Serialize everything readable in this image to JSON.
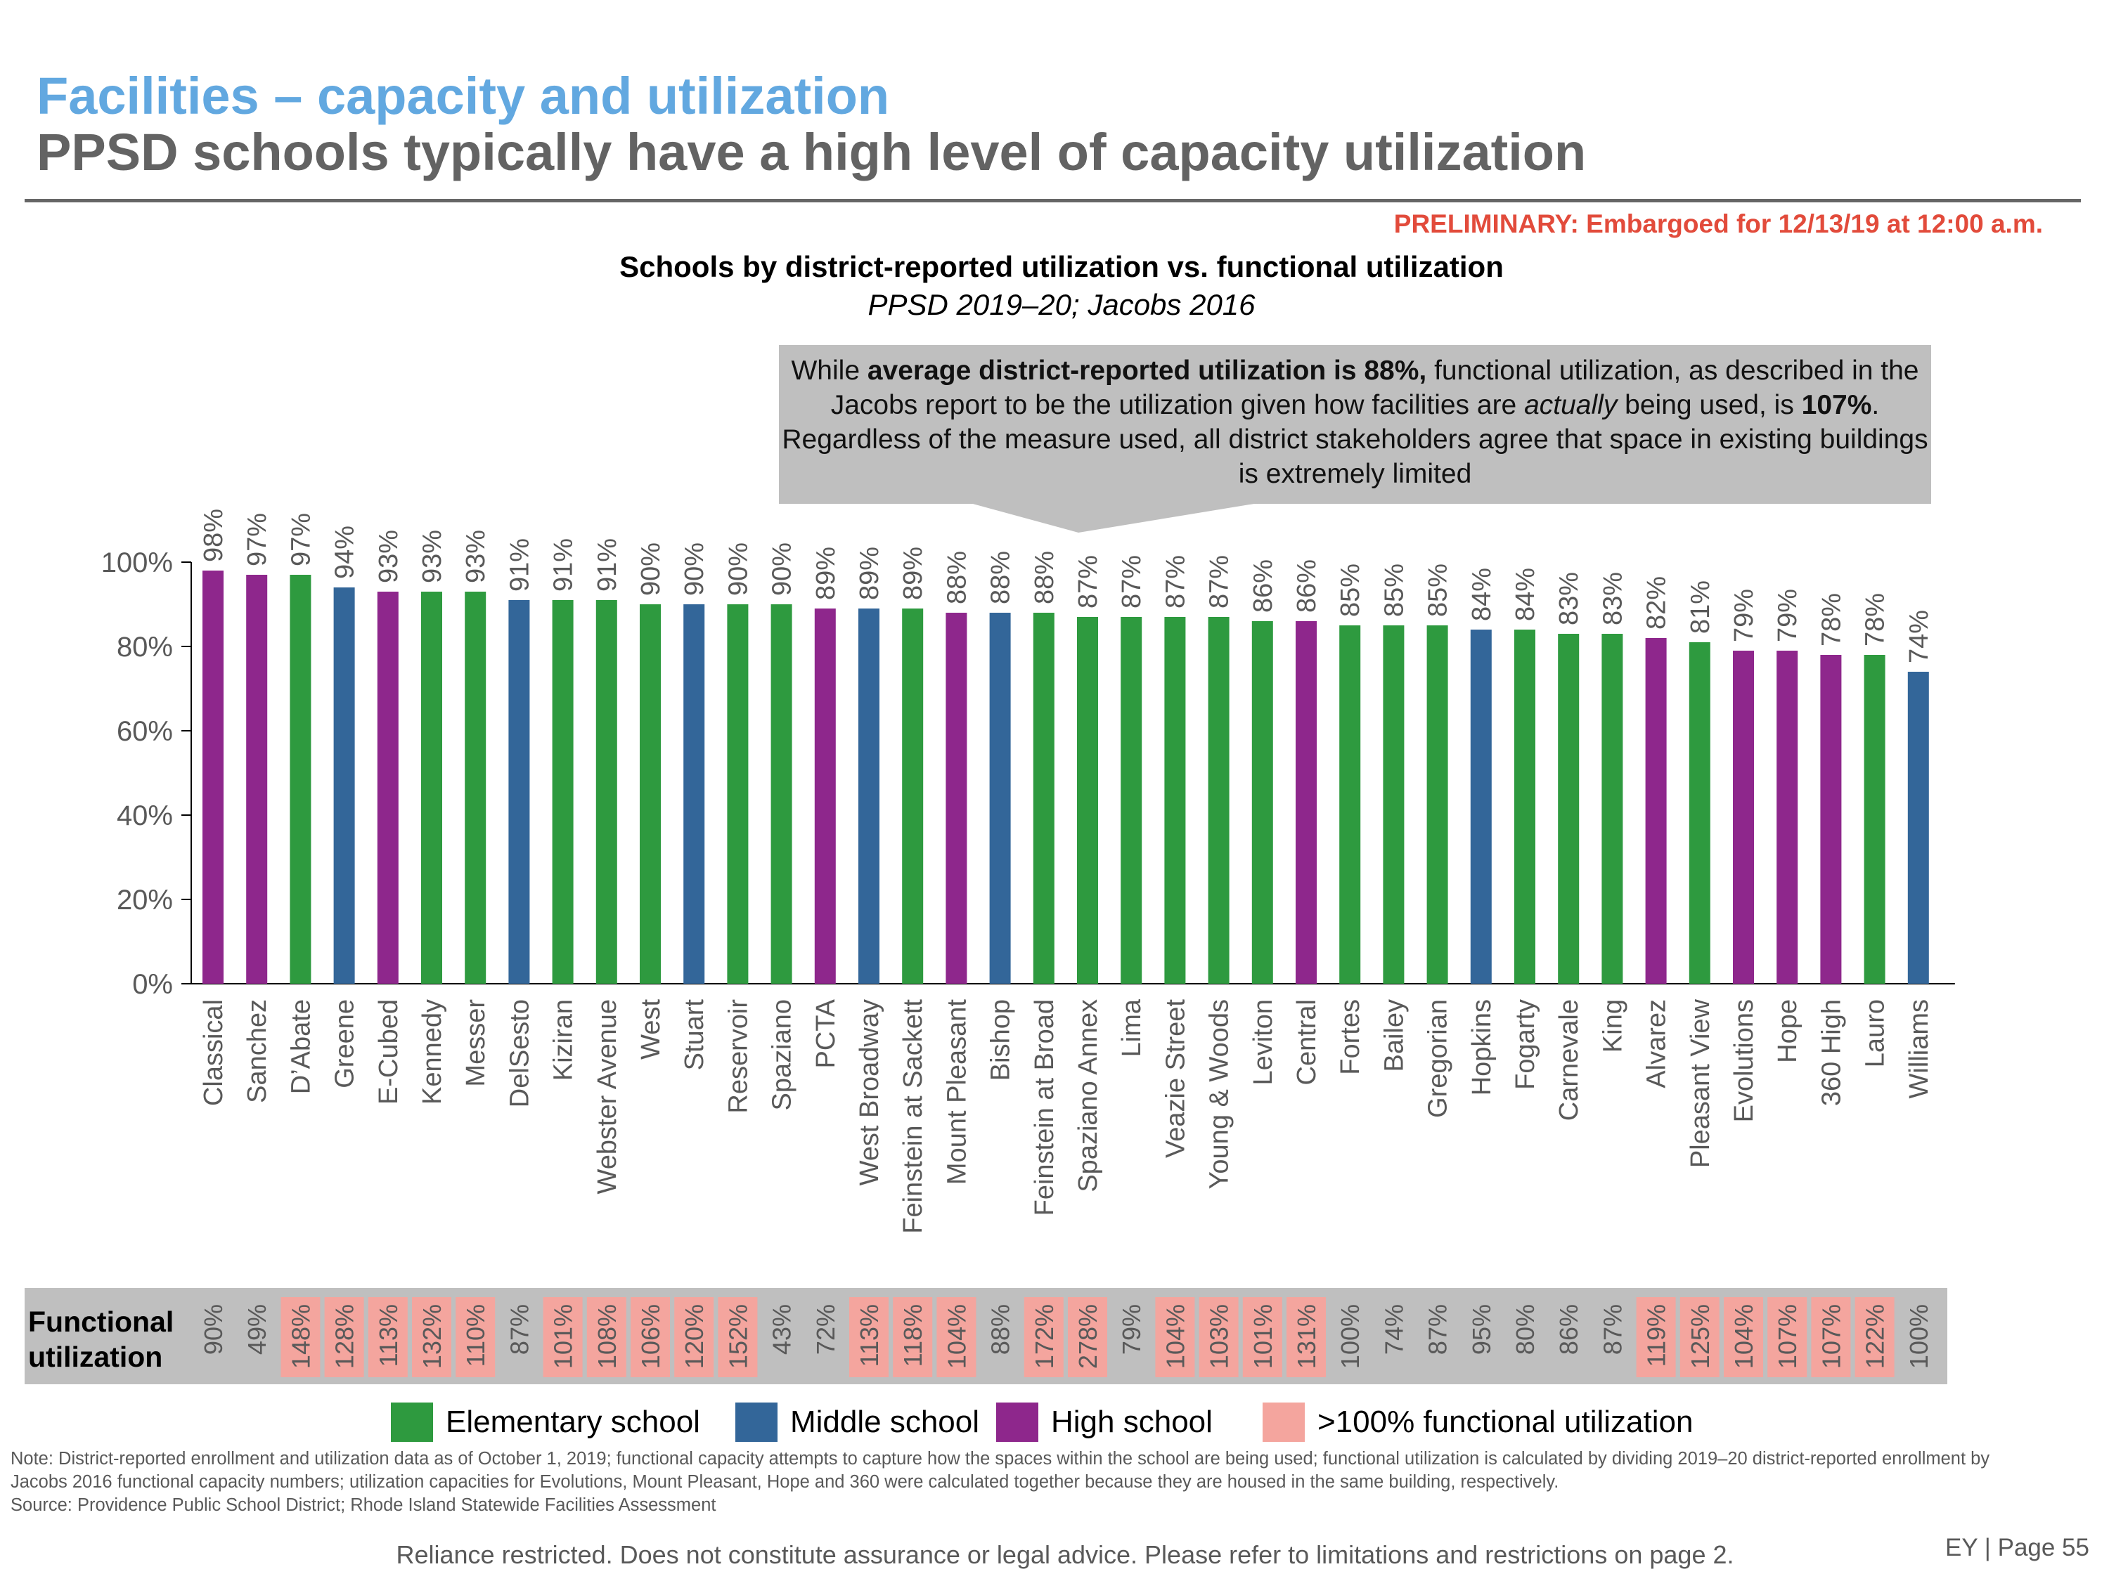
{
  "header": {
    "title": "Facilities – capacity and utilization",
    "subtitle": "PPSD schools typically have a high level of capacity utilization",
    "preliminary": "PRELIMINARY: Embargoed for 12/13/19 at 12:00 a.m."
  },
  "callout": {
    "parts": [
      {
        "text": "While ",
        "bold": false,
        "italic": false
      },
      {
        "text": "average district-reported utilization is 88%,",
        "bold": true,
        "italic": false
      },
      {
        "text": " functional utilization, as described in the Jacobs report to be the utilization given how facilities are ",
        "bold": false,
        "italic": false
      },
      {
        "text": "actually",
        "bold": false,
        "italic": true
      },
      {
        "text": " being used, is ",
        "bold": false,
        "italic": false
      },
      {
        "text": "107%",
        "bold": true,
        "italic": false
      },
      {
        "text": ". Regardless of the measure used, all district stakeholders agree that space in existing buildings is extremely limited",
        "bold": false,
        "italic": false
      }
    ]
  },
  "colors": {
    "elementary": "#2e9a3f",
    "middle": "#336699",
    "high": "#8e278c",
    "over100": "#f4a59e",
    "band": "#bfbfbf",
    "title_blue": "#62a8e0",
    "preliminary_red": "#e24b3b"
  },
  "chart_data": {
    "type": "bar",
    "title": "Schools by district-reported utilization vs. functional utilization",
    "subtitle": "PPSD 2019–20; Jacobs 2016",
    "xlabel": "",
    "ylabel": "",
    "ylim": [
      0,
      100
    ],
    "yticks": [
      "0%",
      "20%",
      "40%",
      "60%",
      "80%",
      "100%"
    ],
    "grid": false,
    "categories": [
      "Classical",
      "Sanchez",
      "D’Abate",
      "Greene",
      "E-Cubed",
      "Kennedy",
      "Messer",
      "DelSesto",
      "Kiziran",
      "Webster Avenue",
      "West",
      "Stuart",
      "Reservoir",
      "Spaziano",
      "PCTA",
      "West Broadway",
      "Feinstein at Sackett",
      "Mount Pleasant",
      "Bishop",
      "Feinstein at Broad",
      "Spaziano Annex",
      "Lima",
      "Veazie Street",
      "Young & Woods",
      "Leviton",
      "Central",
      "Fortes",
      "Bailey",
      "Gregorian",
      "Hopkins",
      "Fogarty",
      "Carnevale",
      "King",
      "Alvarez",
      "Pleasant View",
      "Evolutions",
      "Hope",
      "360 High",
      "Lauro",
      "Williams"
    ],
    "school_type": [
      "high",
      "high",
      "elementary",
      "middle",
      "high",
      "elementary",
      "elementary",
      "middle",
      "elementary",
      "elementary",
      "elementary",
      "middle",
      "elementary",
      "elementary",
      "high",
      "middle",
      "elementary",
      "high",
      "middle",
      "elementary",
      "elementary",
      "elementary",
      "elementary",
      "elementary",
      "elementary",
      "high",
      "elementary",
      "elementary",
      "elementary",
      "middle",
      "elementary",
      "elementary",
      "elementary",
      "high",
      "elementary",
      "high",
      "high",
      "high",
      "elementary",
      "middle"
    ],
    "series": [
      {
        "name": "District-reported utilization",
        "values": [
          98,
          97,
          97,
          94,
          93,
          93,
          93,
          91,
          91,
          91,
          90,
          90,
          90,
          90,
          89,
          89,
          89,
          88,
          88,
          88,
          87,
          87,
          87,
          87,
          86,
          86,
          85,
          85,
          85,
          84,
          84,
          83,
          83,
          82,
          81,
          79,
          79,
          78,
          78,
          74
        ]
      },
      {
        "name": "Functional utilization",
        "values": [
          90,
          49,
          148,
          128,
          113,
          132,
          110,
          87,
          101,
          108,
          106,
          120,
          152,
          43,
          72,
          113,
          118,
          104,
          88,
          172,
          278,
          79,
          104,
          103,
          101,
          131,
          100,
          74,
          87,
          95,
          80,
          86,
          87,
          119,
          125,
          104,
          107,
          107,
          122,
          100
        ]
      }
    ],
    "functional_row_label": "Functional utilization",
    "legend": {
      "placement": "bottom",
      "items": [
        {
          "label": "Elementary school",
          "key": "elementary"
        },
        {
          "label": "Middle school",
          "key": "middle"
        },
        {
          "label": "High school",
          "key": "high"
        },
        {
          "label": ">100% functional utilization",
          "key": "over100"
        }
      ]
    }
  },
  "footer": {
    "note": "Note: District-reported enrollment and utilization data as of October 1, 2019; functional capacity attempts to capture how the spaces within the school are being used; functional utilization is calculated by dividing 2019–20 district-reported enrollment by Jacobs 2016 functional capacity numbers; utilization capacities for Evolutions, Mount Pleasant, Hope and 360 were calculated together because they are housed in the same building, respectively.",
    "source": "Source: Providence Public School District; Rhode Island Statewide Facilities Assessment",
    "disclaimer": "Reliance restricted. Does not constitute assurance or legal advice. Please refer to limitations and restrictions on page 2.",
    "page": "EY | Page 55"
  }
}
